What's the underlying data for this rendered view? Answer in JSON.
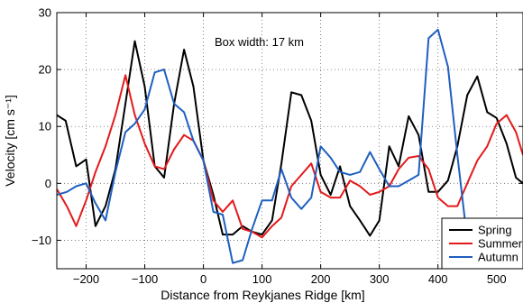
{
  "chart_data": {
    "type": "line",
    "xlabel": "Distance from Reykjanes Ridge  [km]",
    "ylabel": "Velocity [cm s⁻¹]",
    "annotation": "Box width: 17 km",
    "xlim": [
      -250,
      545
    ],
    "ylim": [
      -15,
      30
    ],
    "xticks": [
      -200,
      -100,
      0,
      100,
      200,
      300,
      400,
      500
    ],
    "yticks": [
      -10,
      0,
      10,
      20,
      30
    ],
    "grid": true,
    "legend_position": "bottom-right",
    "series": [
      {
        "name": "Spring",
        "color": "#000000",
        "x": [
          -250,
          -235,
          -217,
          -200,
          -184,
          -167,
          -150,
          -133,
          -117,
          -100,
          -83,
          -67,
          -50,
          -33,
          -17,
          0,
          17,
          33,
          50,
          67,
          83,
          100,
          117,
          133,
          150,
          167,
          184,
          200,
          217,
          233,
          250,
          267,
          284,
          300,
          317,
          333,
          350,
          367,
          384,
          400,
          417,
          433,
          450,
          467,
          484,
          500,
          517,
          533,
          545
        ],
        "values": [
          12.0,
          11.0,
          3.0,
          4.2,
          -7.5,
          -4.0,
          2.5,
          14.0,
          25.0,
          17.0,
          3.0,
          1.0,
          14.0,
          23.5,
          17.0,
          4.0,
          -2.0,
          -9.0,
          -9.0,
          -7.5,
          -8.5,
          -9.0,
          -6.5,
          3.5,
          16.0,
          15.5,
          11.0,
          1.5,
          -2.0,
          3.0,
          -4.0,
          -6.5,
          -9.2,
          -6.5,
          6.5,
          3.0,
          11.8,
          8.5,
          -1.5,
          -1.5,
          0.5,
          6.5,
          15.5,
          18.8,
          12.5,
          11.5,
          7.0,
          1.0,
          0.0
        ]
      },
      {
        "name": "Summer",
        "color": "#e31a1c",
        "x": [
          -250,
          -233,
          -217,
          -200,
          -184,
          -167,
          -150,
          -133,
          -117,
          -100,
          -83,
          -67,
          -50,
          -33,
          -17,
          0,
          17,
          33,
          50,
          67,
          83,
          100,
          117,
          133,
          150,
          167,
          184,
          200,
          217,
          233,
          250,
          267,
          284,
          300,
          317,
          333,
          350,
          367,
          384,
          400,
          417,
          433,
          450,
          467,
          484,
          500,
          517,
          533,
          545
        ],
        "values": [
          -1.0,
          -4.0,
          -7.5,
          -3.0,
          2.0,
          6.5,
          12.0,
          19.0,
          12.0,
          7.0,
          3.0,
          2.5,
          6.0,
          8.5,
          7.5,
          4.0,
          -3.0,
          -5.0,
          -3.0,
          -8.0,
          -8.5,
          -9.5,
          -7.5,
          -6.0,
          -0.5,
          1.5,
          3.5,
          -1.5,
          -2.5,
          -2.5,
          0.5,
          -0.5,
          -2.0,
          -1.5,
          -0.5,
          2.5,
          4.5,
          4.8,
          2.5,
          -2.5,
          -4.0,
          -4.0,
          0.0,
          4.0,
          6.5,
          10.5,
          12.0,
          9.0,
          5.0
        ]
      },
      {
        "name": "Autumn",
        "color": "#1f5fbf",
        "x": [
          -250,
          -233,
          -217,
          -200,
          -184,
          -167,
          -150,
          -133,
          -117,
          -100,
          -83,
          -67,
          -50,
          -33,
          -17,
          0,
          17,
          33,
          50,
          67,
          83,
          100,
          117,
          133,
          150,
          167,
          184,
          200,
          217,
          233,
          250,
          267,
          284,
          300,
          317,
          333,
          350,
          367,
          384,
          400,
          417,
          433,
          450,
          467,
          484,
          500,
          517,
          533,
          545
        ],
        "values": [
          -2.0,
          -1.5,
          -0.5,
          0.0,
          -3.5,
          -6.5,
          2.0,
          9.0,
          10.5,
          13.0,
          19.5,
          20.0,
          14.0,
          12.5,
          7.5,
          4.0,
          -5.0,
          -5.5,
          -14.0,
          -13.5,
          -8.0,
          -3.0,
          -3.0,
          2.5,
          -2.5,
          -4.5,
          -2.5,
          6.5,
          4.5,
          2.0,
          1.5,
          2.0,
          5.5,
          2.5,
          -0.5,
          -0.5,
          0.5,
          1.5,
          25.5,
          27.0,
          20.5,
          5.0,
          -10.0,
          -14.0,
          -14.0,
          -14.0,
          -14.0,
          -14.0,
          -14.0
        ]
      }
    ]
  }
}
